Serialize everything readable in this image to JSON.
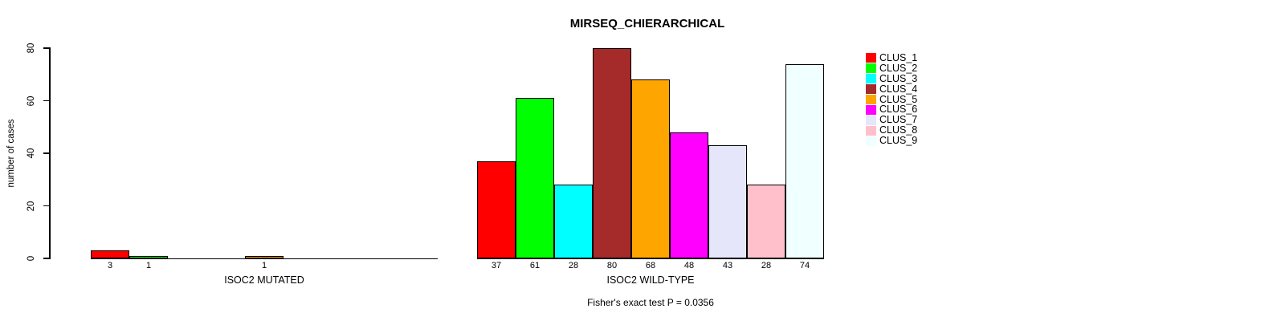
{
  "chart_data": {
    "type": "bar",
    "title": "MIRSEQ_CHIERARCHICAL",
    "ylabel": "number of cases",
    "ylim": [
      0,
      80
    ],
    "yticks": [
      0,
      20,
      40,
      60,
      80
    ],
    "grid": false,
    "legend_position": "right",
    "clusters": [
      "CLUS_1",
      "CLUS_2",
      "CLUS_3",
      "CLUS_4",
      "CLUS_5",
      "CLUS_6",
      "CLUS_7",
      "CLUS_8",
      "CLUS_9"
    ],
    "colors": [
      "#FF0000",
      "#00FF00",
      "#00FFFF",
      "#A52A2A",
      "#FFA500",
      "#FF00FF",
      "#E6E6FA",
      "#FFC0CB",
      "#F0FFFF"
    ],
    "groups": [
      {
        "label": "ISOC2 MUTATED",
        "values": [
          3,
          1,
          0,
          0,
          1,
          0,
          0,
          0,
          0
        ],
        "bar_labels": [
          "3",
          "1",
          "",
          "",
          "1",
          "",
          "",
          "",
          ""
        ]
      },
      {
        "label": "ISOC2 WILD-TYPE",
        "values": [
          37,
          61,
          28,
          80,
          68,
          48,
          43,
          28,
          74
        ],
        "bar_labels": [
          "37",
          "61",
          "28",
          "80",
          "68",
          "48",
          "43",
          "28",
          "74"
        ]
      }
    ],
    "annotation": "Fisher's exact test P = 0.0356"
  }
}
